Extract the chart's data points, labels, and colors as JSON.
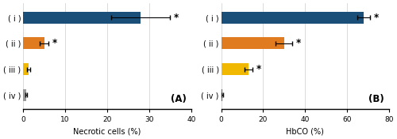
{
  "chart_A": {
    "title": "(A)",
    "xlabel": "Necrotic cells (%)",
    "categories": [
      "( i )",
      "( ii )",
      "( iii )",
      "( iv )"
    ],
    "values": [
      28.0,
      5.0,
      1.2,
      0.7
    ],
    "errors": [
      7.0,
      1.0,
      0.35,
      0.25
    ],
    "colors": [
      "#1a4f7a",
      "#e07b20",
      "#f0b800",
      "#999999"
    ],
    "xlim": [
      0,
      40
    ],
    "xticks": [
      0,
      10,
      20,
      30,
      40
    ],
    "show_star": [
      true,
      true,
      false,
      false
    ]
  },
  "chart_B": {
    "title": "(B)",
    "xlabel": "HbCO (%)",
    "categories": [
      "( i )",
      "( ii )",
      "( iii )",
      "( iv )"
    ],
    "values": [
      68.0,
      30.0,
      13.0,
      0.5
    ],
    "errors": [
      3.0,
      4.0,
      1.8,
      0.25
    ],
    "colors": [
      "#1a4f7a",
      "#e07b20",
      "#f0b800",
      "#555555"
    ],
    "xlim": [
      0,
      80
    ],
    "xticks": [
      0,
      20,
      40,
      60,
      80
    ],
    "show_star": [
      true,
      true,
      true,
      false
    ]
  },
  "background_color": "#ffffff",
  "bar_height": 0.45,
  "label_fontsize": 7.0,
  "tick_fontsize": 6.5,
  "title_fontsize": 8.5,
  "star_fontsize": 8.5
}
